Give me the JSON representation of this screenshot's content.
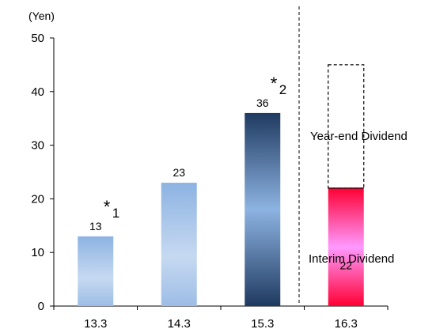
{
  "chart_data": {
    "type": "bar",
    "unit_label": "(Yen)",
    "categories": [
      "13.3",
      "14.3",
      "15.3",
      "16.3"
    ],
    "values": [
      13,
      23,
      36,
      22
    ],
    "value_labels": [
      "13",
      "23",
      "36",
      "22"
    ],
    "forecast_total": 45,
    "ylim": [
      0,
      50
    ],
    "yticks": [
      "0",
      "10",
      "20",
      "30",
      "40",
      "50"
    ],
    "notes": [
      {
        "category": "13.3",
        "mark": "*",
        "num": "1"
      },
      {
        "category": "15.3",
        "mark": "*",
        "num": "2"
      }
    ],
    "segment_labels": {
      "year_end": "Year-end Dividend",
      "interim": "Interim Dividend"
    },
    "colors": {
      "bar_light": "#c4d8f0",
      "bar_mid": "#8db3e2",
      "bar_dark": "#1f3a60",
      "interim_pink": "#ff99ff",
      "interim_red": "#ff0033"
    }
  }
}
